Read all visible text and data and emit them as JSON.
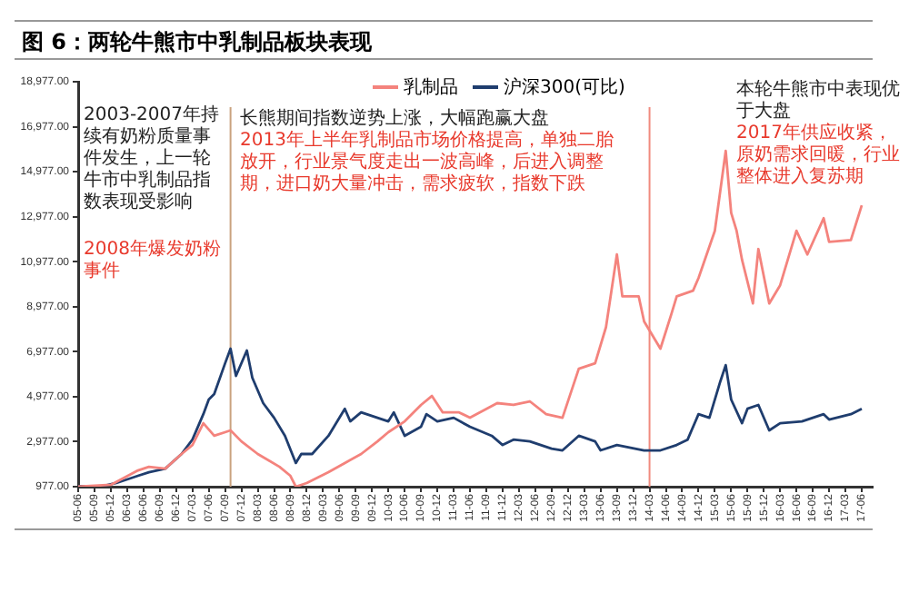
{
  "chart_data": {
    "type": "line",
    "title": "图 6：两轮牛熊市中乳制品板块表现",
    "annotations": [
      "2003-2007年持续有奶粉质量事件发生，上一轮牛市中乳制品指数表现受影响",
      "2008年爆发奶粉事件",
      "长熊期间指数逆势上涨，大幅跑赢大盘",
      "2013年上半年乳制品市场价格提高，单独二胎放开，行业景气度走出一波高峰，后进入调整期，进口奶大量冲击，需求疲软，指数下跌",
      "本轮牛熊市中表现优于大盘",
      "2017年供应收紧，原奶需求回暖，行业整体进入复苏期"
    ],
    "legend": "top",
    "grid": false,
    "series": [
      {
        "name": "乳制品",
        "color": "#f4837d",
        "x": [
          "2005-06",
          "2005-12",
          "2006-05",
          "2006-07",
          "2006-10",
          "2007-01",
          "2007-03",
          "2007-05",
          "2007-07",
          "2007-09",
          "2007-10",
          "2007-12",
          "2008-03",
          "2008-07",
          "2008-09",
          "2008-10",
          "2008-12",
          "2009-04",
          "2009-07",
          "2009-10",
          "2010-01",
          "2010-03",
          "2010-06",
          "2010-09",
          "2010-11",
          "2011-01",
          "2011-04",
          "2011-06",
          "2011-11",
          "2012-02",
          "2012-05",
          "2012-08",
          "2012-11",
          "2013-02",
          "2013-05",
          "2013-07",
          "2013-09",
          "2013-10",
          "2014-01",
          "2014-02",
          "2014-05",
          "2014-07",
          "2014-08",
          "2014-11",
          "2014-12",
          "2015-03",
          "2015-05",
          "2015-06",
          "2015-07",
          "2015-08",
          "2015-10",
          "2015-11",
          "2016-01",
          "2016-03",
          "2016-06",
          "2016-08",
          "2016-11",
          "2016-12",
          "2017-04",
          "2017-06"
        ],
        "values": [
          977,
          1060,
          1700,
          1860,
          1780,
          2430,
          2830,
          3800,
          3240,
          3400,
          3480,
          2990,
          2430,
          1860,
          1460,
          977,
          1140,
          1620,
          2030,
          2430,
          2990,
          3400,
          3880,
          4610,
          5010,
          4280,
          4280,
          4040,
          4690,
          4610,
          4770,
          4200,
          4040,
          6220,
          6460,
          8070,
          11300,
          9440,
          9440,
          8320,
          7110,
          8640,
          9440,
          9690,
          10250,
          12350,
          15900,
          13150,
          12350,
          11060,
          9120,
          11540,
          9120,
          9930,
          12350,
          11300,
          12910,
          11860,
          11940,
          13480
        ]
      },
      {
        "name": "沪深300(可比)",
        "color": "#1f3d6e",
        "x": [
          "2005-06",
          "2005-10",
          "2006-01",
          "2006-05",
          "2006-07",
          "2006-10",
          "2007-01",
          "2007-03",
          "2007-05",
          "2007-06",
          "2007-07",
          "2007-09",
          "2007-10",
          "2007-11",
          "2008-01",
          "2008-02",
          "2008-04",
          "2008-06",
          "2008-08",
          "2008-10",
          "2008-11",
          "2009-01",
          "2009-04",
          "2009-07",
          "2009-08",
          "2009-10",
          "2010-01",
          "2010-03",
          "2010-04",
          "2010-06",
          "2010-09",
          "2010-10",
          "2010-12",
          "2011-03",
          "2011-06",
          "2011-10",
          "2011-12",
          "2012-02",
          "2012-05",
          "2012-09",
          "2012-11",
          "2013-02",
          "2013-05",
          "2013-06",
          "2013-09",
          "2014-02",
          "2014-05",
          "2014-08",
          "2014-10",
          "2014-12",
          "2015-02",
          "2015-04",
          "2015-05",
          "2015-06",
          "2015-08",
          "2015-09",
          "2015-11",
          "2016-01",
          "2016-03",
          "2016-07",
          "2016-11",
          "2016-12",
          "2017-04",
          "2017-06"
        ],
        "values": [
          1000,
          977,
          1140,
          1460,
          1620,
          1780,
          2430,
          3070,
          4200,
          4850,
          5090,
          6460,
          7110,
          5900,
          7030,
          5820,
          4690,
          4040,
          3240,
          2030,
          2430,
          2430,
          3240,
          4440,
          3880,
          4280,
          4040,
          3880,
          4280,
          3240,
          3640,
          4200,
          3880,
          4040,
          3640,
          3240,
          2830,
          3070,
          2990,
          2670,
          2590,
          3240,
          2990,
          2590,
          2830,
          2590,
          2590,
          2830,
          3070,
          4200,
          4040,
          5650,
          6380,
          4850,
          3800,
          4440,
          4610,
          3480,
          3800,
          3880,
          4200,
          3960,
          4200,
          4440
        ]
      }
    ],
    "ref_lines": [
      {
        "axis": "x",
        "value": "2007-10",
        "color": "#c9a27e"
      },
      {
        "axis": "x",
        "value": "2014-03",
        "color": "#f08a7e"
      }
    ],
    "xlim": [
      "2005-06",
      "2017-08"
    ],
    "xticks": [
      {
        "value": "2005-06",
        "label": "05-06"
      },
      {
        "value": "2005-09",
        "label": "05-09"
      },
      {
        "value": "2005-12",
        "label": "05-12"
      },
      {
        "value": "2006-03",
        "label": "06-03"
      },
      {
        "value": "2006-06",
        "label": "06-06"
      },
      {
        "value": "2006-09",
        "label": "06-09"
      },
      {
        "value": "2006-12",
        "label": "06-12"
      },
      {
        "value": "2007-03",
        "label": "07-03"
      },
      {
        "value": "2007-06",
        "label": "07-06"
      },
      {
        "value": "2007-09",
        "label": "07-09"
      },
      {
        "value": "2007-12",
        "label": "07-12"
      },
      {
        "value": "2008-03",
        "label": "08-03"
      },
      {
        "value": "2008-06",
        "label": "08-06"
      },
      {
        "value": "2008-09",
        "label": "08-09"
      },
      {
        "value": "2008-12",
        "label": "08-12"
      },
      {
        "value": "2009-03",
        "label": "09-03"
      },
      {
        "value": "2009-06",
        "label": "09-06"
      },
      {
        "value": "2009-09",
        "label": "09-09"
      },
      {
        "value": "2009-12",
        "label": "09-12"
      },
      {
        "value": "2010-03",
        "label": "10-03"
      },
      {
        "value": "2010-06",
        "label": "10-06"
      },
      {
        "value": "2010-09",
        "label": "10-09"
      },
      {
        "value": "2010-12",
        "label": "10-12"
      },
      {
        "value": "2011-03",
        "label": "11-03"
      },
      {
        "value": "2011-06",
        "label": "11-06"
      },
      {
        "value": "2011-09",
        "label": "11-09"
      },
      {
        "value": "2011-12",
        "label": "11-12"
      },
      {
        "value": "2012-03",
        "label": "12-03"
      },
      {
        "value": "2012-06",
        "label": "12-06"
      },
      {
        "value": "2012-09",
        "label": "12-09"
      },
      {
        "value": "2012-12",
        "label": "12-12"
      },
      {
        "value": "2013-03",
        "label": "13-03"
      },
      {
        "value": "2013-06",
        "label": "13-06"
      },
      {
        "value": "2013-09",
        "label": "13-09"
      },
      {
        "value": "2013-12",
        "label": "13-12"
      },
      {
        "value": "2014-03",
        "label": "14-03"
      },
      {
        "value": "2014-06",
        "label": "14-06"
      },
      {
        "value": "2014-09",
        "label": "14-09"
      },
      {
        "value": "2014-12",
        "label": "14-12"
      },
      {
        "value": "2015-03",
        "label": "15-03"
      },
      {
        "value": "2015-06",
        "label": "15-06"
      },
      {
        "value": "2015-09",
        "label": "15-09"
      },
      {
        "value": "2015-12",
        "label": "15-12"
      },
      {
        "value": "2016-03",
        "label": "16-03"
      },
      {
        "value": "2016-06",
        "label": "16-06"
      },
      {
        "value": "2016-09",
        "label": "16-09"
      },
      {
        "value": "2016-12",
        "label": "16-12"
      },
      {
        "value": "2017-03",
        "label": "17-03"
      },
      {
        "value": "2017-06",
        "label": "17-06"
      }
    ],
    "ylim": [
      977,
      18977
    ],
    "yticks": [
      {
        "value": 977,
        "label": "977.00"
      },
      {
        "value": 2977,
        "label": "2,977.00"
      },
      {
        "value": 4977,
        "label": "4,977.00"
      },
      {
        "value": 6977,
        "label": "6,977.00"
      },
      {
        "value": 8977,
        "label": "8,977.00"
      },
      {
        "value": 10977,
        "label": "10,977.00"
      },
      {
        "value": 12977,
        "label": "12,977.00"
      },
      {
        "value": 14977,
        "label": "14,977.00"
      },
      {
        "value": 16977,
        "label": "16,977.00"
      },
      {
        "value": 18977,
        "label": "18,977.00"
      }
    ]
  }
}
